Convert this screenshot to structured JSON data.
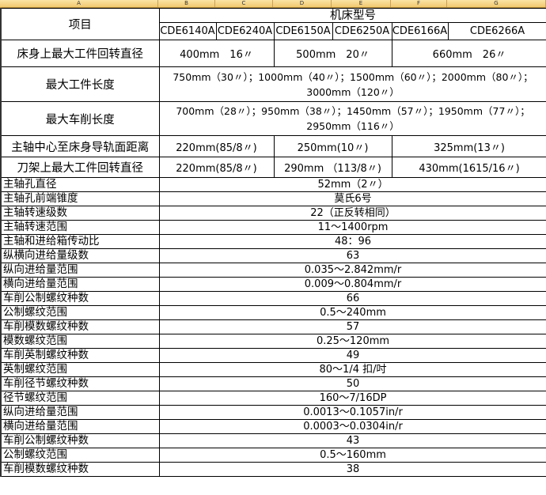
{
  "column_headers": [
    "A",
    "B",
    "C",
    "D",
    "E",
    "F",
    "G"
  ],
  "header": {
    "item_label": "项目",
    "group_label": "机床型号",
    "models": [
      "CDE6140A",
      "CDE6240A",
      "CDE6150A",
      "CDE6250A",
      "CDE6166A",
      "CDE6266A"
    ]
  },
  "spec_rows_grouped": [
    {
      "label": "床身上最大工件回转直径",
      "values": [
        "400mm　16〃",
        "500mm　20〃",
        "660mm　26〃"
      ]
    },
    {
      "label": "最大工件长度",
      "values": [
        "750mm（30〃）；1000mm（40〃）；1500mm（60〃）；2000mm（80〃）；3000mm（120〃）"
      ]
    },
    {
      "label": "最大车削长度",
      "values": [
        "700mm（28〃）；950mm（38〃）；1450mm（57〃）；1950mm（77〃）；2950mm（116〃）"
      ]
    },
    {
      "label": "主轴中心至床身导轨面距离",
      "values": [
        "220mm(85/8〃)",
        "250mm(10〃)",
        "325mm(13〃)"
      ]
    },
    {
      "label": "刀架上最大工件回转直径",
      "values": [
        "220mm(85/8〃)",
        "290mm （113/8〃)",
        "430mm(1615/16〃)"
      ]
    }
  ],
  "spec_rows": [
    {
      "label": "主轴孔直径",
      "value": "52mm（2〃）"
    },
    {
      "label": "主轴孔前端锥度",
      "value": "莫氏6号"
    },
    {
      "label": "主轴转速级数",
      "value": "22（正反转相同）"
    },
    {
      "label": "主轴转速范围",
      "value": "11～1400rpm"
    },
    {
      "label": "主轴和进给箱传动比",
      "value": "48：96"
    },
    {
      "label": "纵横向进给量级数",
      "value": "63"
    },
    {
      "label": "纵向进给量范围",
      "value": "0.035～2.842mm/r"
    },
    {
      "label": "横向进给量范围",
      "value": "0.009～0.804mm/r"
    },
    {
      "label": "车削公制螺纹种数",
      "value": "66"
    },
    {
      "label": "公制螺纹范围",
      "value": "0.5～240mm"
    },
    {
      "label": "车削模数螺纹种数",
      "value": "57"
    },
    {
      "label": "模数螺纹范围",
      "value": "0.25～120mm"
    },
    {
      "label": "车削英制螺纹种数",
      "value": "49"
    },
    {
      "label": "英制螺纹范围",
      "value": "80～1/4 扣/吋"
    },
    {
      "label": "车削径节螺纹种数",
      "value": "50"
    },
    {
      "label": "径节螺纹范围",
      "value": "160～7/16DP"
    },
    {
      "label": "纵向进给量范围",
      "value": "0.0013～0.1057in/r"
    },
    {
      "label": "横向进给量范围",
      "value": "0.0003～0.0304in/r"
    },
    {
      "label": "车削公制螺纹种数",
      "value": "43"
    },
    {
      "label": "公制螺纹范围",
      "value": "0.5～160mm"
    },
    {
      "label": "车削模数螺纹种数",
      "value": "38"
    }
  ],
  "colors": {
    "column_header_bg": "#f4cf7d",
    "grid": "#000000"
  }
}
